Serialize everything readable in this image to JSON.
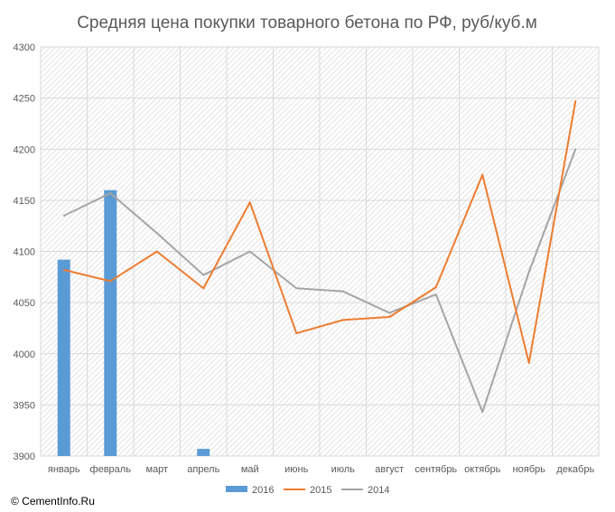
{
  "chart_data": {
    "type": "bar+line",
    "title": "Средняя цена покупки товарного бетона по РФ, руб/куб.м",
    "categories": [
      "январь",
      "февраль",
      "март",
      "апрель",
      "май",
      "июнь",
      "июль",
      "август",
      "сентябрь",
      "октябрь",
      "ноябрь",
      "декабрь"
    ],
    "ylim": [
      3900,
      4300
    ],
    "yticks": [
      3900,
      3950,
      4000,
      4050,
      4100,
      4150,
      4200,
      4250,
      4300
    ],
    "grid": true,
    "legend_position": "bottom",
    "series": [
      {
        "name": "2016",
        "type": "bar",
        "color": "#5b9bd5",
        "values": [
          4092,
          4160,
          null,
          3907,
          null,
          null,
          null,
          null,
          null,
          null,
          null,
          null
        ]
      },
      {
        "name": "2015",
        "type": "line",
        "color": "#ed7d31",
        "values": [
          4082,
          4071,
          4100,
          4064,
          4148,
          4020,
          4033,
          4036,
          4065,
          4175,
          3991,
          4247
        ]
      },
      {
        "name": "2014",
        "type": "line",
        "color": "#a5a5a5",
        "values": [
          4135,
          4157,
          4118,
          4077,
          4100,
          4064,
          4061,
          4040,
          4058,
          3943,
          4080,
          4200
        ]
      }
    ]
  },
  "footer": {
    "copyright": "© CementInfo.Ru"
  }
}
